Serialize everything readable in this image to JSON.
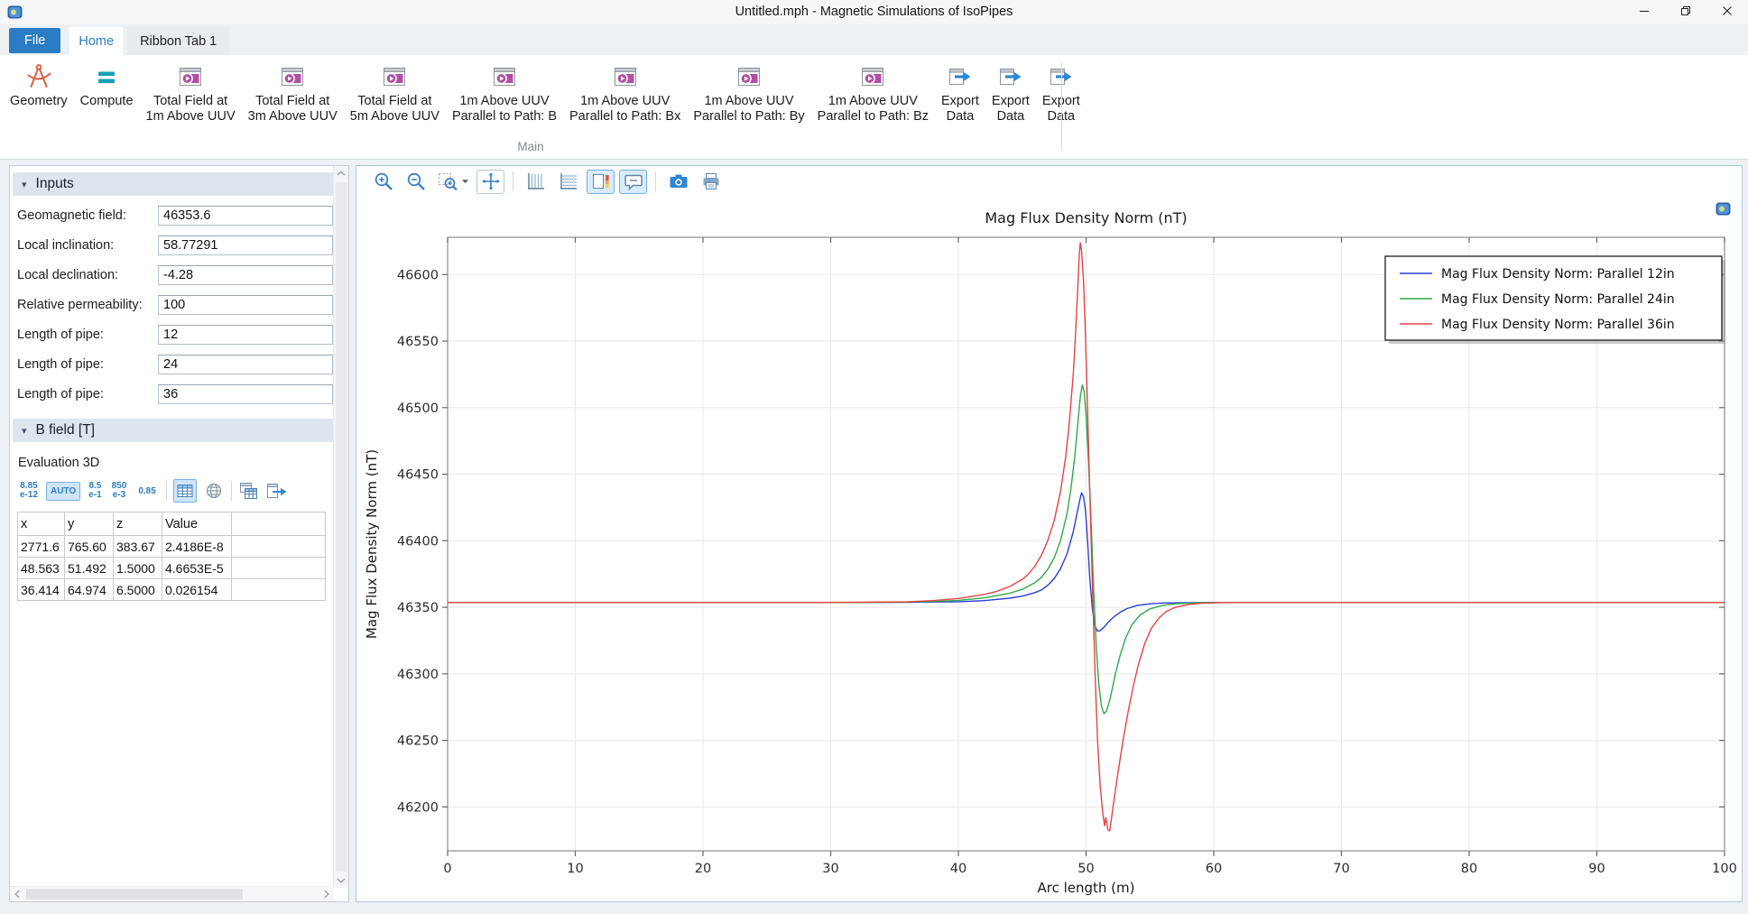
{
  "window": {
    "title": "Untitled.mph - Magnetic Simulations of IsoPipes",
    "controls": [
      "minimize",
      "maximize",
      "close"
    ]
  },
  "ribbon": {
    "tabs": [
      {
        "label": "File",
        "style": "file"
      },
      {
        "label": "Home",
        "style": "active"
      },
      {
        "label": "Ribbon Tab 1",
        "style": "normal"
      }
    ],
    "group_label": "Main",
    "buttons": [
      {
        "name": "geometry-button",
        "icon": "geometry-icon",
        "lines": [
          "Geometry"
        ]
      },
      {
        "name": "compute-button",
        "icon": "compute-icon",
        "lines": [
          "Compute"
        ]
      },
      {
        "name": "plot-total-field-1m-button",
        "icon": "plot-group-icon",
        "lines": [
          "Total Field at",
          "1m Above UUV"
        ]
      },
      {
        "name": "plot-total-field-3m-button",
        "icon": "plot-group-icon",
        "lines": [
          "Total Field at",
          "3m Above UUV"
        ]
      },
      {
        "name": "plot-total-field-5m-button",
        "icon": "plot-group-icon",
        "lines": [
          "Total Field at",
          "5m Above UUV"
        ]
      },
      {
        "name": "plot-parallel-b-button",
        "icon": "plot-group-icon",
        "lines": [
          "1m Above UUV",
          "Parallel to Path: B"
        ]
      },
      {
        "name": "plot-parallel-bx-button",
        "icon": "plot-group-icon",
        "lines": [
          "1m Above UUV",
          "Parallel to Path: Bx"
        ]
      },
      {
        "name": "plot-parallel-by-button",
        "icon": "plot-group-icon",
        "lines": [
          "1m Above UUV",
          "Parallel to Path: By"
        ]
      },
      {
        "name": "plot-parallel-bz-button",
        "icon": "plot-group-icon",
        "lines": [
          "1m Above UUV",
          "Parallel to Path: Bz"
        ]
      },
      {
        "name": "export-data-1-button",
        "icon": "export-data-icon",
        "lines": [
          "Export",
          "Data"
        ]
      },
      {
        "name": "export-data-2-button",
        "icon": "export-data-icon",
        "lines": [
          "Export",
          "Data"
        ]
      },
      {
        "name": "export-data-3-button",
        "icon": "export-data-icon",
        "lines": [
          "Export",
          "Data"
        ]
      }
    ]
  },
  "settings_panel": {
    "inputs": {
      "title": "Inputs",
      "fields": [
        {
          "name": "geomagnetic-field",
          "label": "Geomagnetic field:",
          "value": "46353.6"
        },
        {
          "name": "local-inclination",
          "label": "Local inclination:",
          "value": "58.77291"
        },
        {
          "name": "local-declination",
          "label": "Local declination:",
          "value": "-4.28"
        },
        {
          "name": "relative-permeability",
          "label": "Relative permeability:",
          "value": "100"
        },
        {
          "name": "length-of-pipe-1",
          "label": "Length of pipe:",
          "value": "12"
        },
        {
          "name": "length-of-pipe-2",
          "label": "Length of pipe:",
          "value": "24"
        },
        {
          "name": "length-of-pipe-3",
          "label": "Length of pipe:",
          "value": "36"
        }
      ]
    },
    "bfield": {
      "title": "B field [T]",
      "subtitle": "Evaluation 3D",
      "toolbar": [
        {
          "name": "format-scientific-button",
          "text_lines": [
            "8.85",
            "e-12"
          ]
        },
        {
          "name": "format-auto-button",
          "label": "AUTO",
          "active": true
        },
        {
          "name": "format-engineering-button",
          "text_lines": [
            "8.5",
            "e-1"
          ]
        },
        {
          "name": "format-milli-button",
          "text_lines": [
            "850",
            "e-3"
          ]
        },
        {
          "name": "format-decimal-button",
          "label": "0.85"
        },
        {
          "sep": true
        },
        {
          "name": "show-table-toggle",
          "icon": "table-icon",
          "active": true
        },
        {
          "name": "full-precision-button",
          "icon": "globe-icon"
        },
        {
          "sep": true
        },
        {
          "name": "copy-table-button",
          "icon": "copy-table-icon"
        },
        {
          "name": "export-table-button",
          "icon": "export-table-icon"
        }
      ],
      "table": {
        "columns": [
          "x",
          "y",
          "z",
          "Value"
        ],
        "rows": [
          [
            "2771.6",
            "765.60",
            "383.67",
            "2.4186E-8"
          ],
          [
            "48.563",
            "51.492",
            "1.5000",
            "4.6653E-5"
          ],
          [
            "36.414",
            "64.974",
            "6.5000",
            "0.026154"
          ]
        ]
      }
    }
  },
  "graphics": {
    "toolbar": [
      {
        "name": "zoom-in-button",
        "icon": "zoom-in-icon"
      },
      {
        "name": "zoom-out-button",
        "icon": "zoom-out-icon"
      },
      {
        "name": "zoom-box-button",
        "icon": "zoom-box-icon",
        "dropdown": true
      },
      {
        "name": "zoom-extents-button",
        "icon": "zoom-extents-icon",
        "boxed": true
      },
      {
        "sep": true
      },
      {
        "name": "x-axis-grid-button",
        "icon": "x-grid-icon"
      },
      {
        "name": "y-axis-grid-button",
        "icon": "y-grid-icon"
      },
      {
        "name": "color-legend-toggle",
        "icon": "color-legend-icon",
        "active": true
      },
      {
        "name": "plot-legends-toggle",
        "icon": "plot-legends-icon",
        "active": true
      },
      {
        "sep": true
      },
      {
        "name": "image-snapshot-button",
        "icon": "camera-icon"
      },
      {
        "name": "print-button",
        "icon": "print-icon"
      }
    ]
  },
  "chart_data": {
    "type": "line",
    "title": "Mag Flux Density Norm (nT)",
    "xlabel": "Arc length (m)",
    "ylabel": "Mag Flux Density Norm (nT)",
    "xlim": [
      0,
      100
    ],
    "ylim": [
      46167,
      46628
    ],
    "xticks": [
      0,
      10,
      20,
      30,
      40,
      50,
      60,
      70,
      80,
      90,
      100
    ],
    "yticks": [
      46200,
      46250,
      46300,
      46350,
      46400,
      46450,
      46500,
      46550,
      46600
    ],
    "grid": true,
    "legend_position": "top-right",
    "baseline": 46353.6,
    "series": [
      {
        "name": "Mag Flux Density Norm: Parallel 12in",
        "color": "#2b3fd6",
        "points": [
          [
            0,
            46353.6
          ],
          [
            30,
            46353.6
          ],
          [
            36,
            46353.7
          ],
          [
            40,
            46354.2
          ],
          [
            42,
            46355.0
          ],
          [
            44,
            46356.8
          ],
          [
            45,
            46358.4
          ],
          [
            46,
            46361.0
          ],
          [
            46.5,
            46363.0
          ],
          [
            47,
            46366.5
          ],
          [
            47.5,
            46371.5
          ],
          [
            48,
            46379.0
          ],
          [
            48.5,
            46390.0
          ],
          [
            49,
            46407.0
          ],
          [
            49.3,
            46421.0
          ],
          [
            49.5,
            46430.0
          ],
          [
            49.65,
            46436.0
          ],
          [
            49.8,
            46433.0
          ],
          [
            49.95,
            46423.0
          ],
          [
            50.1,
            46403.0
          ],
          [
            50.3,
            46371.0
          ],
          [
            50.5,
            46348.0
          ],
          [
            50.7,
            46336.0
          ],
          [
            50.9,
            46332.0
          ],
          [
            51.1,
            46332.5
          ],
          [
            51.4,
            46335.0
          ],
          [
            51.8,
            46339.5
          ],
          [
            52.2,
            46343.0
          ],
          [
            52.7,
            46346.5
          ],
          [
            53.2,
            46349.0
          ],
          [
            54,
            46351.3
          ],
          [
            55,
            46352.6
          ],
          [
            56,
            46353.2
          ],
          [
            58,
            46353.5
          ],
          [
            60,
            46353.6
          ],
          [
            100,
            46353.6
          ]
        ]
      },
      {
        "name": "Mag Flux Density Norm: Parallel 24in",
        "color": "#2faa4b",
        "points": [
          [
            0,
            46353.6
          ],
          [
            30,
            46353.6
          ],
          [
            34,
            46353.7
          ],
          [
            38,
            46354.3
          ],
          [
            40,
            46355.2
          ],
          [
            42,
            46357.0
          ],
          [
            44,
            46360.5
          ],
          [
            45,
            46363.5
          ],
          [
            46,
            46368.5
          ],
          [
            46.5,
            46372.5
          ],
          [
            47,
            46378.5
          ],
          [
            47.5,
            46387.0
          ],
          [
            48,
            46400.0
          ],
          [
            48.5,
            46420.0
          ],
          [
            48.8,
            46438.0
          ],
          [
            49.1,
            46462.0
          ],
          [
            49.35,
            46488.0
          ],
          [
            49.55,
            46508.0
          ],
          [
            49.7,
            46517.0
          ],
          [
            49.85,
            46512.0
          ],
          [
            50,
            46495.0
          ],
          [
            50.2,
            46458.0
          ],
          [
            50.4,
            46412.0
          ],
          [
            50.6,
            46362.0
          ],
          [
            50.8,
            46320.0
          ],
          [
            51,
            46292.0
          ],
          [
            51.2,
            46276.0
          ],
          [
            51.4,
            46270.0
          ],
          [
            51.6,
            46272.0
          ],
          [
            51.9,
            46282.0
          ],
          [
            52.3,
            46300.0
          ],
          [
            52.7,
            46315.0
          ],
          [
            53.1,
            46327.0
          ],
          [
            53.6,
            46337.0
          ],
          [
            54.2,
            46344.0
          ],
          [
            55,
            46348.8
          ],
          [
            56,
            46351.5
          ],
          [
            57,
            46352.6
          ],
          [
            58.5,
            46353.3
          ],
          [
            60,
            46353.6
          ],
          [
            100,
            46353.6
          ]
        ]
      },
      {
        "name": "Mag Flux Density Norm: Parallel 36in",
        "color": "#e34444",
        "points": [
          [
            0,
            46353.6
          ],
          [
            28,
            46353.6
          ],
          [
            32,
            46353.8
          ],
          [
            36,
            46354.2
          ],
          [
            38,
            46355.0
          ],
          [
            40,
            46356.6
          ],
          [
            42,
            46359.6
          ],
          [
            43,
            46362.0
          ],
          [
            44,
            46365.5
          ],
          [
            45,
            46371.0
          ],
          [
            45.5,
            46375.0
          ],
          [
            46,
            46381.0
          ],
          [
            46.5,
            46389.0
          ],
          [
            47,
            46400.0
          ],
          [
            47.5,
            46415.0
          ],
          [
            48,
            46437.0
          ],
          [
            48.4,
            46463.0
          ],
          [
            48.7,
            46490.0
          ],
          [
            49,
            46526.0
          ],
          [
            49.2,
            46560.0
          ],
          [
            49.35,
            46590.0
          ],
          [
            49.45,
            46612.0
          ],
          [
            49.55,
            46624.0
          ],
          [
            49.65,
            46618.0
          ],
          [
            49.8,
            46595.0
          ],
          [
            49.95,
            46555.0
          ],
          [
            50.1,
            46505.0
          ],
          [
            50.3,
            46435.0
          ],
          [
            50.5,
            46365.0
          ],
          [
            50.7,
            46302.0
          ],
          [
            50.9,
            46250.0
          ],
          [
            51.1,
            46216.0
          ],
          [
            51.3,
            46196.0
          ],
          [
            51.45,
            46186.0
          ],
          [
            51.55,
            46192.0
          ],
          [
            51.7,
            46183.0
          ],
          [
            51.85,
            46182.0
          ],
          [
            52,
            46192.0
          ],
          [
            52.2,
            46206.0
          ],
          [
            52.5,
            46226.0
          ],
          [
            52.9,
            46250.0
          ],
          [
            53.3,
            46272.0
          ],
          [
            53.7,
            46291.0
          ],
          [
            54.1,
            46307.0
          ],
          [
            54.6,
            46323.0
          ],
          [
            55.1,
            46334.0
          ],
          [
            55.7,
            46342.0
          ],
          [
            56.3,
            46347.0
          ],
          [
            57,
            46350.0
          ],
          [
            58,
            46352.0
          ],
          [
            59,
            46353.0
          ],
          [
            60.5,
            46353.5
          ],
          [
            62,
            46353.6
          ],
          [
            100,
            46353.6
          ]
        ]
      }
    ]
  }
}
